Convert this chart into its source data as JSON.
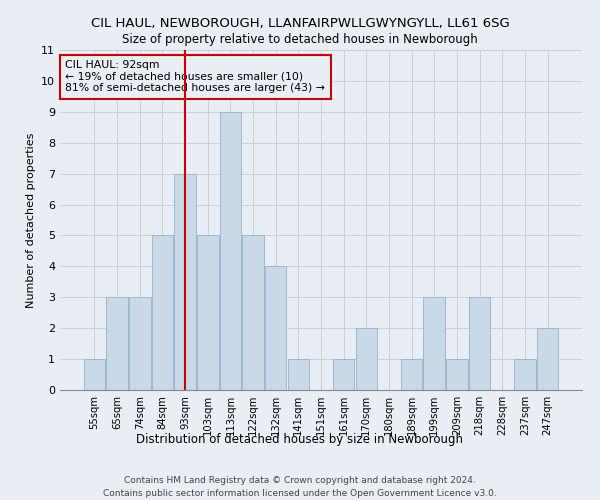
{
  "title_line1": "CIL HAUL, NEWBOROUGH, LLANFAIRPWLLGWYNGYLL, LL61 6SG",
  "title_line2": "Size of property relative to detached houses in Newborough",
  "xlabel": "Distribution of detached houses by size in Newborough",
  "ylabel": "Number of detached properties",
  "bar_labels": [
    "55sqm",
    "65sqm",
    "74sqm",
    "84sqm",
    "93sqm",
    "103sqm",
    "113sqm",
    "122sqm",
    "132sqm",
    "141sqm",
    "151sqm",
    "161sqm",
    "170sqm",
    "180sqm",
    "189sqm",
    "199sqm",
    "209sqm",
    "218sqm",
    "228sqm",
    "237sqm",
    "247sqm"
  ],
  "bar_values": [
    1,
    3,
    3,
    5,
    7,
    5,
    9,
    5,
    4,
    1,
    0,
    1,
    2,
    0,
    1,
    3,
    1,
    3,
    0,
    1,
    2
  ],
  "bar_color": "#c9d9e8",
  "bar_edge_color": "#a0b8cc",
  "ylim": [
    0,
    11
  ],
  "yticks": [
    0,
    1,
    2,
    3,
    4,
    5,
    6,
    7,
    8,
    9,
    10,
    11
  ],
  "grid_color": "#c8d0d8",
  "annotation_text": "CIL HAUL: 92sqm\n← 19% of detached houses are smaller (10)\n81% of semi-detached houses are larger (43) →",
  "vline_color": "#cc0000",
  "footnote1": "Contains HM Land Registry data © Crown copyright and database right 2024.",
  "footnote2": "Contains public sector information licensed under the Open Government Licence v3.0.",
  "bg_color": "#e8eef4"
}
